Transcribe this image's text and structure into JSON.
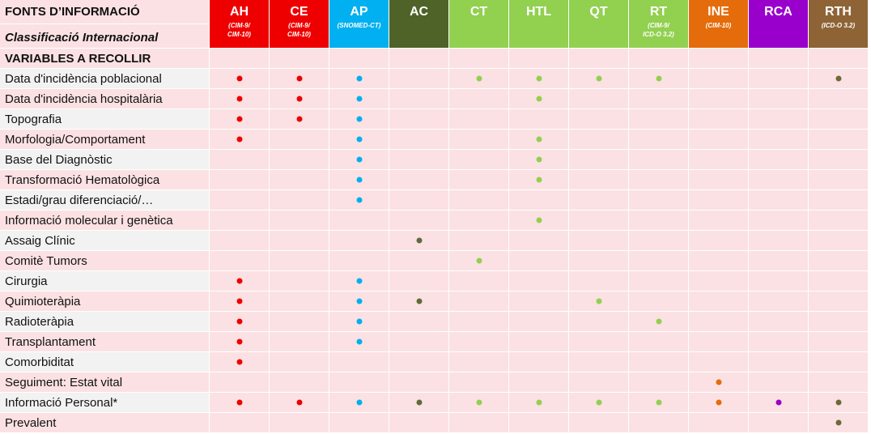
{
  "header": {
    "title": "FONTS D’INFORMACIÓ",
    "subtitle": "Classificació Internacional",
    "variables_heading": "VARIABLES A RECOLLIR"
  },
  "sources": [
    {
      "code": "AH",
      "classification": "(CIM-9/\nCIM-10)",
      "color": "#ee0000"
    },
    {
      "code": "CE",
      "classification": "(CIM-9/\nCIM-10)",
      "color": "#ee0000"
    },
    {
      "code": "AP",
      "classification": "(SNOMED-CT)",
      "color": "#00b0f0"
    },
    {
      "code": "AC",
      "classification": "",
      "color": "#4f6228"
    },
    {
      "code": "CT",
      "classification": "",
      "color": "#92d050"
    },
    {
      "code": "HTL",
      "classification": "",
      "color": "#92d050"
    },
    {
      "code": "QT",
      "classification": "",
      "color": "#92d050"
    },
    {
      "code": "RT",
      "classification": "(CIM-9/\nICD-O 3.2)",
      "color": "#92d050"
    },
    {
      "code": "INE",
      "classification": "(CIM-10)",
      "color": "#e46c0a"
    },
    {
      "code": "RCA",
      "classification": "",
      "color": "#9900cc"
    },
    {
      "code": "RTH",
      "classification": "(ICD-O 3.2)",
      "color": "#8e6437"
    }
  ],
  "dot_colors": {
    "AH": "#ee0000",
    "CE": "#ee0000",
    "AP": "#00b0f0",
    "AC": "#5f6b3a",
    "CT": "#92d050",
    "HTL": "#92d050",
    "QT": "#92d050",
    "RT": "#92d050",
    "INE": "#e46c0a",
    "RCA": "#9900cc",
    "RTH": "#6b6b3a"
  },
  "variables": [
    {
      "label": "Data d'incidència poblacional",
      "sources": [
        "AH",
        "CE",
        "AP",
        "CT",
        "HTL",
        "QT",
        "RT",
        "RTH"
      ]
    },
    {
      "label": "Data d'incidència hospitalària",
      "sources": [
        "AH",
        "CE",
        "AP",
        "HTL"
      ]
    },
    {
      "label": "Topografia",
      "sources": [
        "AH",
        "CE",
        "AP"
      ]
    },
    {
      "label": "Morfologia/Comportament",
      "sources": [
        "AH",
        "AP",
        "HTL"
      ]
    },
    {
      "label": "Base del Diagnòstic",
      "sources": [
        "AP",
        "HTL"
      ]
    },
    {
      "label": "Transformació Hematològica",
      "sources": [
        "AP",
        "HTL"
      ]
    },
    {
      "label": "Estadi/grau diferenciació/…",
      "sources": [
        "AP"
      ]
    },
    {
      "label": "Informació molecular i genètica",
      "sources": [
        "HTL"
      ]
    },
    {
      "label": "Assaig Clínic",
      "sources": [
        "AC"
      ]
    },
    {
      "label": "Comitè Tumors",
      "sources": [
        "CT"
      ]
    },
    {
      "label": "Cirurgia",
      "sources": [
        "AH",
        "AP"
      ]
    },
    {
      "label": "Quimioteràpia",
      "sources": [
        "AH",
        "AP",
        "AC",
        "QT"
      ]
    },
    {
      "label": "Radioteràpia",
      "sources": [
        "AH",
        "AP",
        "RT"
      ]
    },
    {
      "label": "Transplantament",
      "sources": [
        "AH",
        "AP"
      ]
    },
    {
      "label": "Comorbiditat",
      "sources": [
        "AH"
      ]
    },
    {
      "label": "Seguiment: Estat vital",
      "sources": [
        "INE"
      ]
    },
    {
      "label": "Informació Personal*",
      "sources": [
        "AH",
        "CE",
        "AP",
        "AC",
        "CT",
        "HTL",
        "QT",
        "RT",
        "INE",
        "RCA",
        "RTH"
      ]
    },
    {
      "label": "Prevalent",
      "sources": [
        "RTH"
      ]
    }
  ]
}
